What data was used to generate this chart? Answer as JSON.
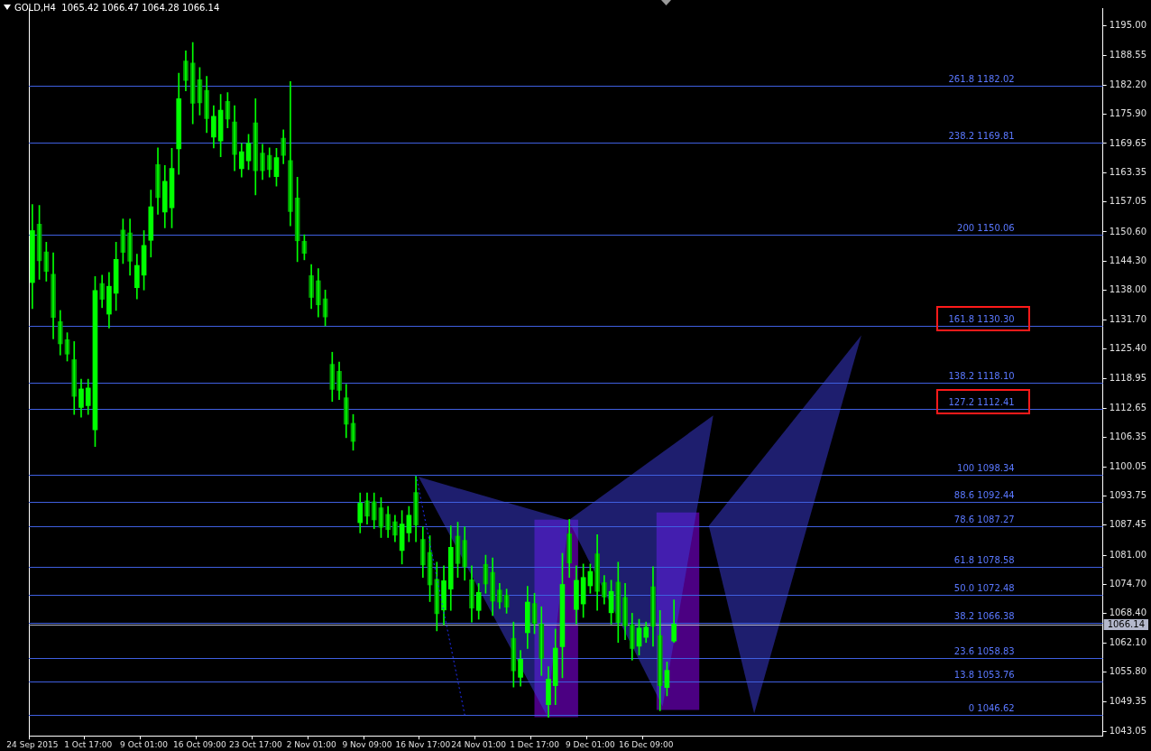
{
  "chart_data": {
    "type": "candlestick",
    "title": "GOLD,H4  1065.42 1066.47 1064.28 1066.14",
    "color": "#00ff00",
    "colors": [
      "#00ff00",
      "#00a000",
      "#00a000",
      "#00a000",
      "#00a000",
      "#00a000",
      "#00a000",
      "#00ff00",
      "#00ff00",
      "#00ff00",
      "#00a000",
      "#00ff00",
      "#00ff00",
      "#00a000",
      "#00a000",
      "#00ff00",
      "#00ff00",
      "#00ff00",
      "#00a000",
      "#00ff00",
      "#00ff00",
      "#00ff00",
      "#00a000",
      "#00a000",
      "#00a000",
      "#00a000",
      "#00ff00",
      "#00ff00",
      "#00a000",
      "#00a000",
      "#00ff00",
      "#00ff00",
      "#00a000",
      "#00a000",
      "#00a000",
      "#00ff00",
      "#00a000",
      "#00a000",
      "#00a000",
      "#00a000",
      "#00a000",
      "#00a000",
      "#00a000",
      "#00a000",
      "#00a000",
      "#00a000",
      "#00a000",
      "#00ff00",
      "#00a000",
      "#00a000",
      "#00a000",
      "#00a000",
      "#00a000",
      "#00ff00",
      "#00ff00",
      "#00a000",
      "#00a000",
      "#00a000",
      "#00a000",
      "#00ff00",
      "#00ff00",
      "#00a000",
      "#00a000",
      "#00a000",
      "#00ff00",
      "#00a000",
      "#00a000",
      "#00a000",
      "#00a000",
      "#00a000",
      "#00ff00",
      "#00ff00",
      "#00a000",
      "#00a000",
      "#00ff00",
      "#00ff00",
      "#00ff00",
      "#00a000",
      "#00ff00",
      "#00ff00",
      "#00ff00",
      "#00a000",
      "#00a000",
      "#00ff00",
      "#00a000",
      "#00a000",
      "#00a000",
      "#00ff00",
      "#00ff00",
      "#00a000",
      "#00a000",
      "#00ff00",
      "#00ff00",
      null,
      null,
      null,
      null,
      null,
      null,
      null,
      null,
      null,
      null,
      null,
      null,
      null,
      null,
      null,
      null,
      null,
      null,
      null,
      null,
      null,
      null,
      null,
      null,
      null,
      null,
      null,
      null,
      null,
      null,
      null,
      null,
      null,
      null,
      null,
      null,
      null,
      null,
      null,
      null,
      null,
      null,
      null,
      null,
      null,
      null,
      null,
      null,
      null,
      null,
      null,
      null,
      null,
      null,
      null,
      null,
      null,
      null,
      null,
      null,
      null
    ],
    "categories": [
      "24 Sep 2015",
      null,
      null,
      null,
      null,
      null,
      null,
      null,
      "1 Oct 17:00",
      null,
      null,
      null,
      null,
      null,
      null,
      null,
      "9 Oct 01:00",
      null,
      null,
      null,
      null,
      null,
      null,
      null,
      "16 Oct 09:00",
      null,
      null,
      null,
      null,
      null,
      null,
      null,
      "23 Oct 17:00",
      null,
      null,
      null,
      null,
      null,
      null,
      null,
      "2 Nov 01:00",
      null,
      null,
      null,
      null,
      null,
      null,
      null,
      "9 Nov 09:00",
      null,
      null,
      null,
      null,
      null,
      null,
      null,
      "16 Nov 17:00",
      null,
      null,
      null,
      null,
      null,
      null,
      null,
      "24 Nov 01:00",
      null,
      null,
      null,
      null,
      null,
      null,
      null,
      "1 Dec 17:00",
      null,
      null,
      null,
      null,
      null,
      null,
      null,
      "9 Dec 01:00",
      null,
      null,
      null,
      null,
      null,
      null,
      null,
      "16 Dec 09:00",
      null,
      null,
      null,
      null,
      null,
      null,
      null,
      null,
      null,
      null,
      null,
      null,
      null,
      null,
      null,
      null,
      null,
      null,
      null,
      null,
      null,
      null,
      null,
      null,
      null,
      null,
      null,
      null,
      null,
      null,
      null,
      null,
      null,
      null,
      null,
      null,
      null,
      null,
      null,
      null,
      null,
      null,
      null,
      null,
      null,
      null,
      null,
      null,
      null,
      null,
      null,
      null,
      null,
      null,
      null,
      null,
      null,
      null,
      null,
      null,
      null,
      null,
      null,
      null,
      null
    ],
    "ohlc": [
      [
        1139.7,
        1156.5,
        1134.1,
        1150.9
      ],
      [
        1152.3,
        1156.3,
        1140.4,
        1144.4
      ],
      [
        1146.3,
        1148.4,
        1140.0,
        1142.1
      ],
      [
        1141.5,
        1146.1,
        1127.6,
        1132.2
      ],
      [
        1131.3,
        1133.7,
        1124.1,
        1126.5
      ],
      [
        1127.4,
        1128.9,
        1122.8,
        1124.3
      ],
      [
        1123.1,
        1127.0,
        1111.3,
        1115.2
      ],
      [
        1112.8,
        1118.9,
        1110.7,
        1116.8
      ],
      [
        1113.2,
        1118.9,
        1111.3,
        1117.0
      ],
      [
        1108.0,
        1141.0,
        1104.4,
        1138.0
      ],
      [
        1139.5,
        1141.3,
        1134.3,
        1136.1
      ],
      [
        1132.9,
        1141.9,
        1129.9,
        1138.9
      ],
      [
        1137.4,
        1148.4,
        1133.7,
        1144.7
      ],
      [
        1151.0,
        1153.4,
        1143.8,
        1146.2
      ],
      [
        1150.4,
        1153.4,
        1141.3,
        1144.3
      ],
      [
        1138.6,
        1145.8,
        1136.2,
        1143.4
      ],
      [
        1141.3,
        1150.9,
        1138.1,
        1147.7
      ],
      [
        1148.8,
        1159.6,
        1145.2,
        1156.0
      ],
      [
        1165.1,
        1168.7,
        1154.4,
        1158.0
      ],
      [
        1154.9,
        1164.9,
        1151.5,
        1161.5
      ],
      [
        1155.8,
        1168.6,
        1151.5,
        1164.3
      ],
      [
        1168.5,
        1184.8,
        1163.0,
        1179.3
      ],
      [
        1187.4,
        1189.6,
        1181.0,
        1183.2
      ],
      [
        1187.0,
        1191.4,
        1173.9,
        1178.3
      ],
      [
        1183.4,
        1186.0,
        1175.8,
        1178.4
      ],
      [
        1181.1,
        1184.1,
        1172.0,
        1175.0
      ],
      [
        1171.0,
        1177.8,
        1168.7,
        1175.5
      ],
      [
        1170.2,
        1180.2,
        1166.8,
        1176.8
      ],
      [
        1178.7,
        1180.6,
        1173.0,
        1174.9
      ],
      [
        1174.3,
        1177.8,
        1163.8,
        1167.3
      ],
      [
        1164.2,
        1169.7,
        1162.4,
        1167.9
      ],
      [
        1165.9,
        1171.6,
        1164.0,
        1169.7
      ],
      [
        1174.1,
        1179.3,
        1158.6,
        1163.8
      ],
      [
        1167.6,
        1169.5,
        1161.9,
        1163.8
      ],
      [
        1167.1,
        1168.7,
        1162.4,
        1164.0
      ],
      [
        1162.5,
        1168.6,
        1160.5,
        1166.6
      ],
      [
        1170.8,
        1172.6,
        1165.3,
        1167.1
      ],
      [
        1166.0,
        1183.0,
        1151.9,
        1155.0
      ],
      [
        1157.9,
        1162.4,
        1144.2,
        1148.7
      ],
      [
        1148.6,
        1150.0,
        1144.6,
        1146.0
      ],
      [
        1141.2,
        1143.6,
        1134.1,
        1136.5
      ],
      [
        1140.1,
        1142.7,
        1132.3,
        1134.9
      ],
      [
        1136.2,
        1138.1,
        1130.4,
        1132.3
      ],
      [
        1122.1,
        1124.7,
        1114.1,
        1116.7
      ],
      [
        1120.6,
        1122.6,
        1114.5,
        1116.5
      ],
      [
        1114.9,
        1117.8,
        1106.3,
        1109.2
      ],
      [
        1109.4,
        1111.3,
        1103.6,
        1105.5
      ],
      [
        1088.0,
        1094.4,
        1085.8,
        1092.2
      ],
      [
        1092.7,
        1094.4,
        1087.7,
        1089.4
      ],
      [
        1092.5,
        1094.4,
        1086.7,
        1088.6
      ],
      [
        1091.2,
        1093.4,
        1084.8,
        1087.0
      ],
      [
        1089.8,
        1091.5,
        1084.8,
        1086.5
      ],
      [
        1088.2,
        1089.6,
        1083.9,
        1085.3
      ],
      [
        1082.0,
        1090.6,
        1079.1,
        1087.7
      ],
      [
        1085.8,
        1091.5,
        1083.9,
        1089.6
      ],
      [
        1094.5,
        1098.1,
        1083.9,
        1087.5
      ],
      [
        1084.4,
        1087.1,
        1076.2,
        1078.9
      ],
      [
        1081.6,
        1085.2,
        1071.0,
        1074.6
      ],
      [
        1075.8,
        1079.5,
        1064.7,
        1068.4
      ],
      [
        1069.2,
        1078.7,
        1066.0,
        1075.5
      ],
      [
        1073.7,
        1087.3,
        1069.1,
        1082.7
      ],
      [
        1085.1,
        1088.1,
        1076.2,
        1079.2
      ],
      [
        1084.2,
        1087.1,
        1075.6,
        1078.5
      ],
      [
        1075.7,
        1078.7,
        1066.6,
        1069.6
      ],
      [
        1069.1,
        1074.9,
        1067.2,
        1073.0
      ],
      [
        1079.0,
        1081.0,
        1072.8,
        1074.8
      ],
      [
        1077.3,
        1080.4,
        1068.0,
        1071.1
      ],
      [
        1073.5,
        1074.9,
        1069.5,
        1070.9
      ],
      [
        1072.4,
        1073.7,
        1068.5,
        1069.8
      ],
      [
        1063.1,
        1066.6,
        1052.6,
        1056.1
      ],
      [
        1054.7,
        1060.5,
        1052.8,
        1058.6
      ],
      [
        1064.3,
        1074.3,
        1060.9,
        1070.9
      ],
      [
        1070.6,
        1072.8,
        1064.1,
        1066.3
      ],
      [
        1066.2,
        1069.9,
        1055.1,
        1058.8
      ],
      [
        1048.8,
        1057.0,
        1046.1,
        1054.3
      ],
      [
        1052.9,
        1065.1,
        1048.8,
        1061.0
      ],
      [
        1061.3,
        1081.4,
        1054.6,
        1074.7
      ],
      [
        1085.6,
        1088.7,
        1076.2,
        1079.3
      ],
      [
        1069.3,
        1078.7,
        1066.2,
        1075.6
      ],
      [
        1070.5,
        1079.1,
        1067.6,
        1076.2
      ],
      [
        1074.4,
        1079.1,
        1072.8,
        1077.5
      ],
      [
        1081.3,
        1085.4,
        1069.1,
        1073.2
      ],
      [
        1075.1,
        1076.6,
        1070.5,
        1072.0
      ],
      [
        1068.6,
        1075.6,
        1066.2,
        1073.2
      ],
      [
        1075.2,
        1079.5,
        1062.2,
        1066.5
      ],
      [
        1071.9,
        1074.9,
        1062.8,
        1065.8
      ],
      [
        1066.0,
        1068.5,
        1058.4,
        1060.9
      ],
      [
        1061.4,
        1067.2,
        1059.5,
        1065.3
      ],
      [
        1063.3,
        1066.6,
        1062.2,
        1065.5
      ],
      [
        1074.2,
        1078.5,
        1061.4,
        1065.7
      ],
      [
        1063.7,
        1069.1,
        1047.5,
        1052.9
      ],
      [
        1052.5,
        1058.0,
        1050.7,
        1056.2
      ],
      [
        1062.5,
        1071.4,
        1062.2,
        1066.14
      ],
      null,
      null,
      null,
      null,
      null,
      null,
      null,
      null,
      null,
      null,
      null,
      null,
      null,
      null,
      null,
      null,
      null,
      null,
      null,
      null,
      null,
      null,
      null,
      null,
      null,
      null,
      null,
      null,
      null,
      null,
      null,
      null,
      null,
      null,
      null,
      null,
      null,
      null,
      null,
      null,
      null,
      null,
      null,
      null,
      null,
      null,
      null,
      null,
      null,
      null,
      null,
      null,
      null,
      null,
      null,
      null,
      null,
      null,
      null,
      null,
      null
    ],
    "ylim": [
      1042.1,
      1198.8
    ],
    "yticks": [
      {
        "value": 1195.0,
        "label": "1195.00"
      },
      {
        "value": 1188.55,
        "label": "1188.55"
      },
      {
        "value": 1182.2,
        "label": "1182.20"
      },
      {
        "value": 1175.9,
        "label": "1175.90"
      },
      {
        "value": 1169.65,
        "label": "1169.65"
      },
      {
        "value": 1163.35,
        "label": "1163.35"
      },
      {
        "value": 1157.05,
        "label": "1157.05"
      },
      {
        "value": 1150.6,
        "label": "1150.60"
      },
      {
        "value": 1144.3,
        "label": "1144.30"
      },
      {
        "value": 1138.0,
        "label": "1138.00"
      },
      {
        "value": 1131.7,
        "label": "1131.70"
      },
      {
        "value": 1125.4,
        "label": "1125.40"
      },
      {
        "value": 1118.95,
        "label": "1118.95"
      },
      {
        "value": 1112.65,
        "label": "1112.65"
      },
      {
        "value": 1106.35,
        "label": "1106.35"
      },
      {
        "value": 1100.05,
        "label": "1100.05"
      },
      {
        "value": 1093.75,
        "label": "1093.75"
      },
      {
        "value": 1087.45,
        "label": "1087.45"
      },
      {
        "value": 1081.0,
        "label": "1081.00"
      },
      {
        "value": 1074.7,
        "label": "1074.70"
      },
      {
        "value": 1068.4,
        "label": "1068.40"
      },
      {
        "value": 1062.1,
        "label": "1062.10"
      },
      {
        "value": 1055.8,
        "label": "1055.80"
      },
      {
        "value": 1049.35,
        "label": "1049.35"
      },
      {
        "value": 1043.05,
        "label": "1043.05"
      }
    ],
    "ref_lines": [
      {
        "axis": "y",
        "value": 1182.02,
        "label": "261.8 1182.02",
        "color": "#3f5fe0"
      },
      {
        "axis": "y",
        "value": 1169.81,
        "label": "238.2 1169.81",
        "color": "#3f5fe0"
      },
      {
        "axis": "y",
        "value": 1150.06,
        "label": "200 1150.06",
        "color": "#3f5fe0"
      },
      {
        "axis": "y",
        "value": 1130.3,
        "label": "161.8 1130.30",
        "color": "#3f5fe0"
      },
      {
        "axis": "y",
        "value": 1118.1,
        "label": "138.2 1118.10",
        "color": "#3f5fe0"
      },
      {
        "axis": "y",
        "value": 1112.41,
        "label": "127.2 1112.41",
        "color": "#3f5fe0"
      },
      {
        "axis": "y",
        "value": 1098.34,
        "label": "100 1098.34",
        "color": "#3f5fe0"
      },
      {
        "axis": "y",
        "value": 1092.44,
        "label": "88.6 1092.44",
        "color": "#3f5fe0"
      },
      {
        "axis": "y",
        "value": 1087.27,
        "label": "78.6 1087.27",
        "color": "#3f5fe0"
      },
      {
        "axis": "y",
        "value": 1078.58,
        "label": "61.8 1078.58",
        "color": "#3f5fe0"
      },
      {
        "axis": "y",
        "value": 1072.48,
        "label": "50.0 1072.48",
        "color": "#3f5fe0"
      },
      {
        "axis": "y",
        "value": 1066.38,
        "label": "38.2 1066.38",
        "color": "#3f5fe0"
      },
      {
        "axis": "y",
        "value": 1058.83,
        "label": "23.6 1058.83",
        "color": "#3f5fe0"
      },
      {
        "axis": "y",
        "value": 1053.76,
        "label": "13.8 1053.76",
        "color": "#3f5fe0"
      },
      {
        "axis": "y",
        "value": 1046.62,
        "label": "0 1046.62",
        "color": "#3f5fe0"
      },
      {
        "axis": "y",
        "value": 1066.14,
        "label": "1066.14",
        "color": "#b4b8cc"
      }
    ],
    "series": [
      {
        "type": "line",
        "color": "#2030ff",
        "line_style": "dotted",
        "marker": "none",
        "values": [
          null,
          null,
          null,
          null,
          null,
          null,
          null,
          null,
          null,
          null,
          null,
          null,
          null,
          null,
          null,
          null,
          null,
          null,
          null,
          null,
          null,
          null,
          null,
          null,
          null,
          null,
          null,
          null,
          null,
          null,
          null,
          null,
          null,
          null,
          null,
          null,
          null,
          null,
          null,
          null,
          null,
          null,
          null,
          null,
          null,
          null,
          null,
          null,
          null,
          null,
          null,
          null,
          null,
          null,
          null,
          1098.3,
          null,
          null,
          null,
          null,
          null,
          null,
          1046.6,
          null,
          null,
          null,
          null,
          null,
          null,
          null,
          null,
          null,
          null,
          null,
          null,
          null,
          null,
          null,
          null,
          null,
          null,
          null,
          null,
          null,
          null,
          null,
          null,
          null,
          null,
          null,
          null,
          null,
          null,
          null,
          null,
          null,
          null,
          null,
          null,
          null,
          null,
          null,
          null,
          null,
          null,
          null,
          null,
          null,
          null,
          null,
          null,
          null,
          null,
          null,
          null,
          null,
          null,
          null,
          null,
          null,
          null,
          null,
          null,
          null,
          null,
          null,
          null,
          null,
          null,
          null,
          null,
          null,
          null,
          null,
          null,
          null,
          null,
          null,
          null,
          null,
          null,
          null,
          null,
          null,
          null,
          null,
          null,
          null,
          null,
          null,
          null,
          null,
          null,
          null
        ]
      }
    ],
    "legend": false
  }
}
